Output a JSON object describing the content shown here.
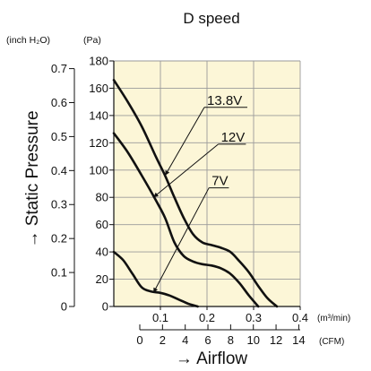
{
  "chart_data": {
    "type": "line",
    "title": "D speed",
    "xlabel": "→ Airflow",
    "ylabel": "→ Static Pressure",
    "x_primary_unit": "(m³/min)",
    "x_secondary_unit": "(CFM)",
    "y_primary_unit": "(Pa)",
    "y_secondary_unit": "(inch H₂O)",
    "xlim": [
      0,
      0.4
    ],
    "ylim": [
      0,
      180
    ],
    "grid": true,
    "x_ticks": [
      "0.1",
      "0.2",
      "0.3",
      "0.4"
    ],
    "x_tick_values": [
      0.1,
      0.2,
      0.3,
      0.4
    ],
    "x_secondary_ticks": [
      "0",
      "2",
      "4",
      "6",
      "8",
      "10",
      "12",
      "14"
    ],
    "x_secondary_tick_values": [
      0,
      2,
      4,
      6,
      8,
      10,
      12,
      14
    ],
    "y_ticks": [
      "0",
      "20",
      "40",
      "60",
      "80",
      "100",
      "120",
      "140",
      "160",
      "180"
    ],
    "y_tick_values": [
      0,
      20,
      40,
      60,
      80,
      100,
      120,
      140,
      160,
      180
    ],
    "y_secondary_ticks": [
      "0",
      "0.1",
      "0.2",
      "0.3",
      "0.4",
      "0.5",
      "0.6",
      "0.7"
    ],
    "y_secondary_tick_values": [
      0,
      0.1,
      0.2,
      0.3,
      0.4,
      0.5,
      0.6,
      0.7
    ],
    "series": [
      {
        "name": "13.8V",
        "x": [
          0,
          0.03,
          0.06,
          0.09,
          0.11,
          0.13,
          0.15,
          0.17,
          0.19,
          0.21,
          0.23,
          0.25,
          0.27,
          0.29,
          0.31,
          0.33,
          0.35
        ],
        "y": [
          166,
          150,
          132,
          110,
          96,
          80,
          65,
          53,
          47,
          45,
          43,
          40,
          33,
          25,
          15,
          6,
          0
        ]
      },
      {
        "name": "12V",
        "x": [
          0,
          0.03,
          0.06,
          0.09,
          0.11,
          0.13,
          0.15,
          0.17,
          0.19,
          0.21,
          0.23,
          0.25,
          0.27,
          0.29,
          0.31
        ],
        "y": [
          127,
          113,
          96,
          78,
          65,
          47,
          37,
          33,
          31,
          30,
          28,
          24,
          17,
          8,
          0
        ]
      },
      {
        "name": "7V",
        "x": [
          0,
          0.02,
          0.04,
          0.06,
          0.08,
          0.1,
          0.12,
          0.14,
          0.16,
          0.18
        ],
        "y": [
          40,
          34,
          24,
          14,
          11,
          10,
          8,
          5,
          2,
          0
        ]
      }
    ],
    "annotations": [
      {
        "text": "13.8V",
        "label_x": 0.2,
        "label_y": 146,
        "point_x": 0.11,
        "point_y": 96
      },
      {
        "text": "12V",
        "label_x": 0.23,
        "label_y": 119,
        "point_x": 0.085,
        "point_y": 80
      },
      {
        "text": "7V",
        "label_x": 0.21,
        "label_y": 87,
        "point_x": 0.085,
        "point_y": 10
      }
    ]
  }
}
